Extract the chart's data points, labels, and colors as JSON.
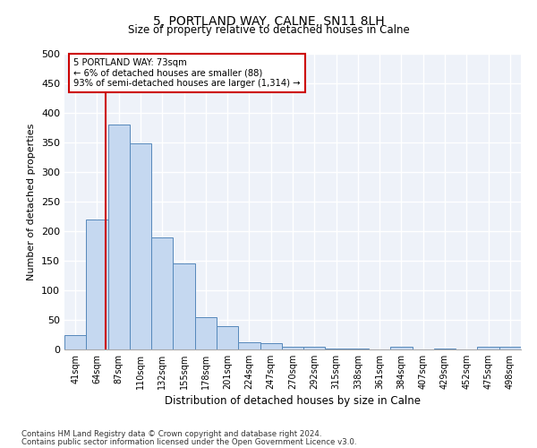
{
  "title": "5, PORTLAND WAY, CALNE, SN11 8LH",
  "subtitle": "Size of property relative to detached houses in Calne",
  "xlabel": "Distribution of detached houses by size in Calne",
  "ylabel": "Number of detached properties",
  "bar_color": "#c5d8f0",
  "bar_edge_color": "#5588bb",
  "categories": [
    "41sqm",
    "64sqm",
    "87sqm",
    "110sqm",
    "132sqm",
    "155sqm",
    "178sqm",
    "201sqm",
    "224sqm",
    "247sqm",
    "270sqm",
    "292sqm",
    "315sqm",
    "338sqm",
    "361sqm",
    "384sqm",
    "407sqm",
    "429sqm",
    "452sqm",
    "475sqm",
    "498sqm"
  ],
  "values": [
    25,
    220,
    380,
    348,
    190,
    145,
    55,
    40,
    12,
    10,
    5,
    4,
    2,
    1,
    0,
    4,
    0,
    1,
    0,
    4,
    4
  ],
  "vline_x": 1.4,
  "vline_color": "#cc0000",
  "annotation_line1": "5 PORTLAND WAY: 73sqm",
  "annotation_line2": "← 6% of detached houses are smaller (88)",
  "annotation_line3": "93% of semi-detached houses are larger (1,314) →",
  "ylim": [
    0,
    500
  ],
  "yticks": [
    0,
    50,
    100,
    150,
    200,
    250,
    300,
    350,
    400,
    450,
    500
  ],
  "background_color": "#eef2f9",
  "grid_color": "#ffffff",
  "footnote1": "Contains HM Land Registry data © Crown copyright and database right 2024.",
  "footnote2": "Contains public sector information licensed under the Open Government Licence v3.0."
}
